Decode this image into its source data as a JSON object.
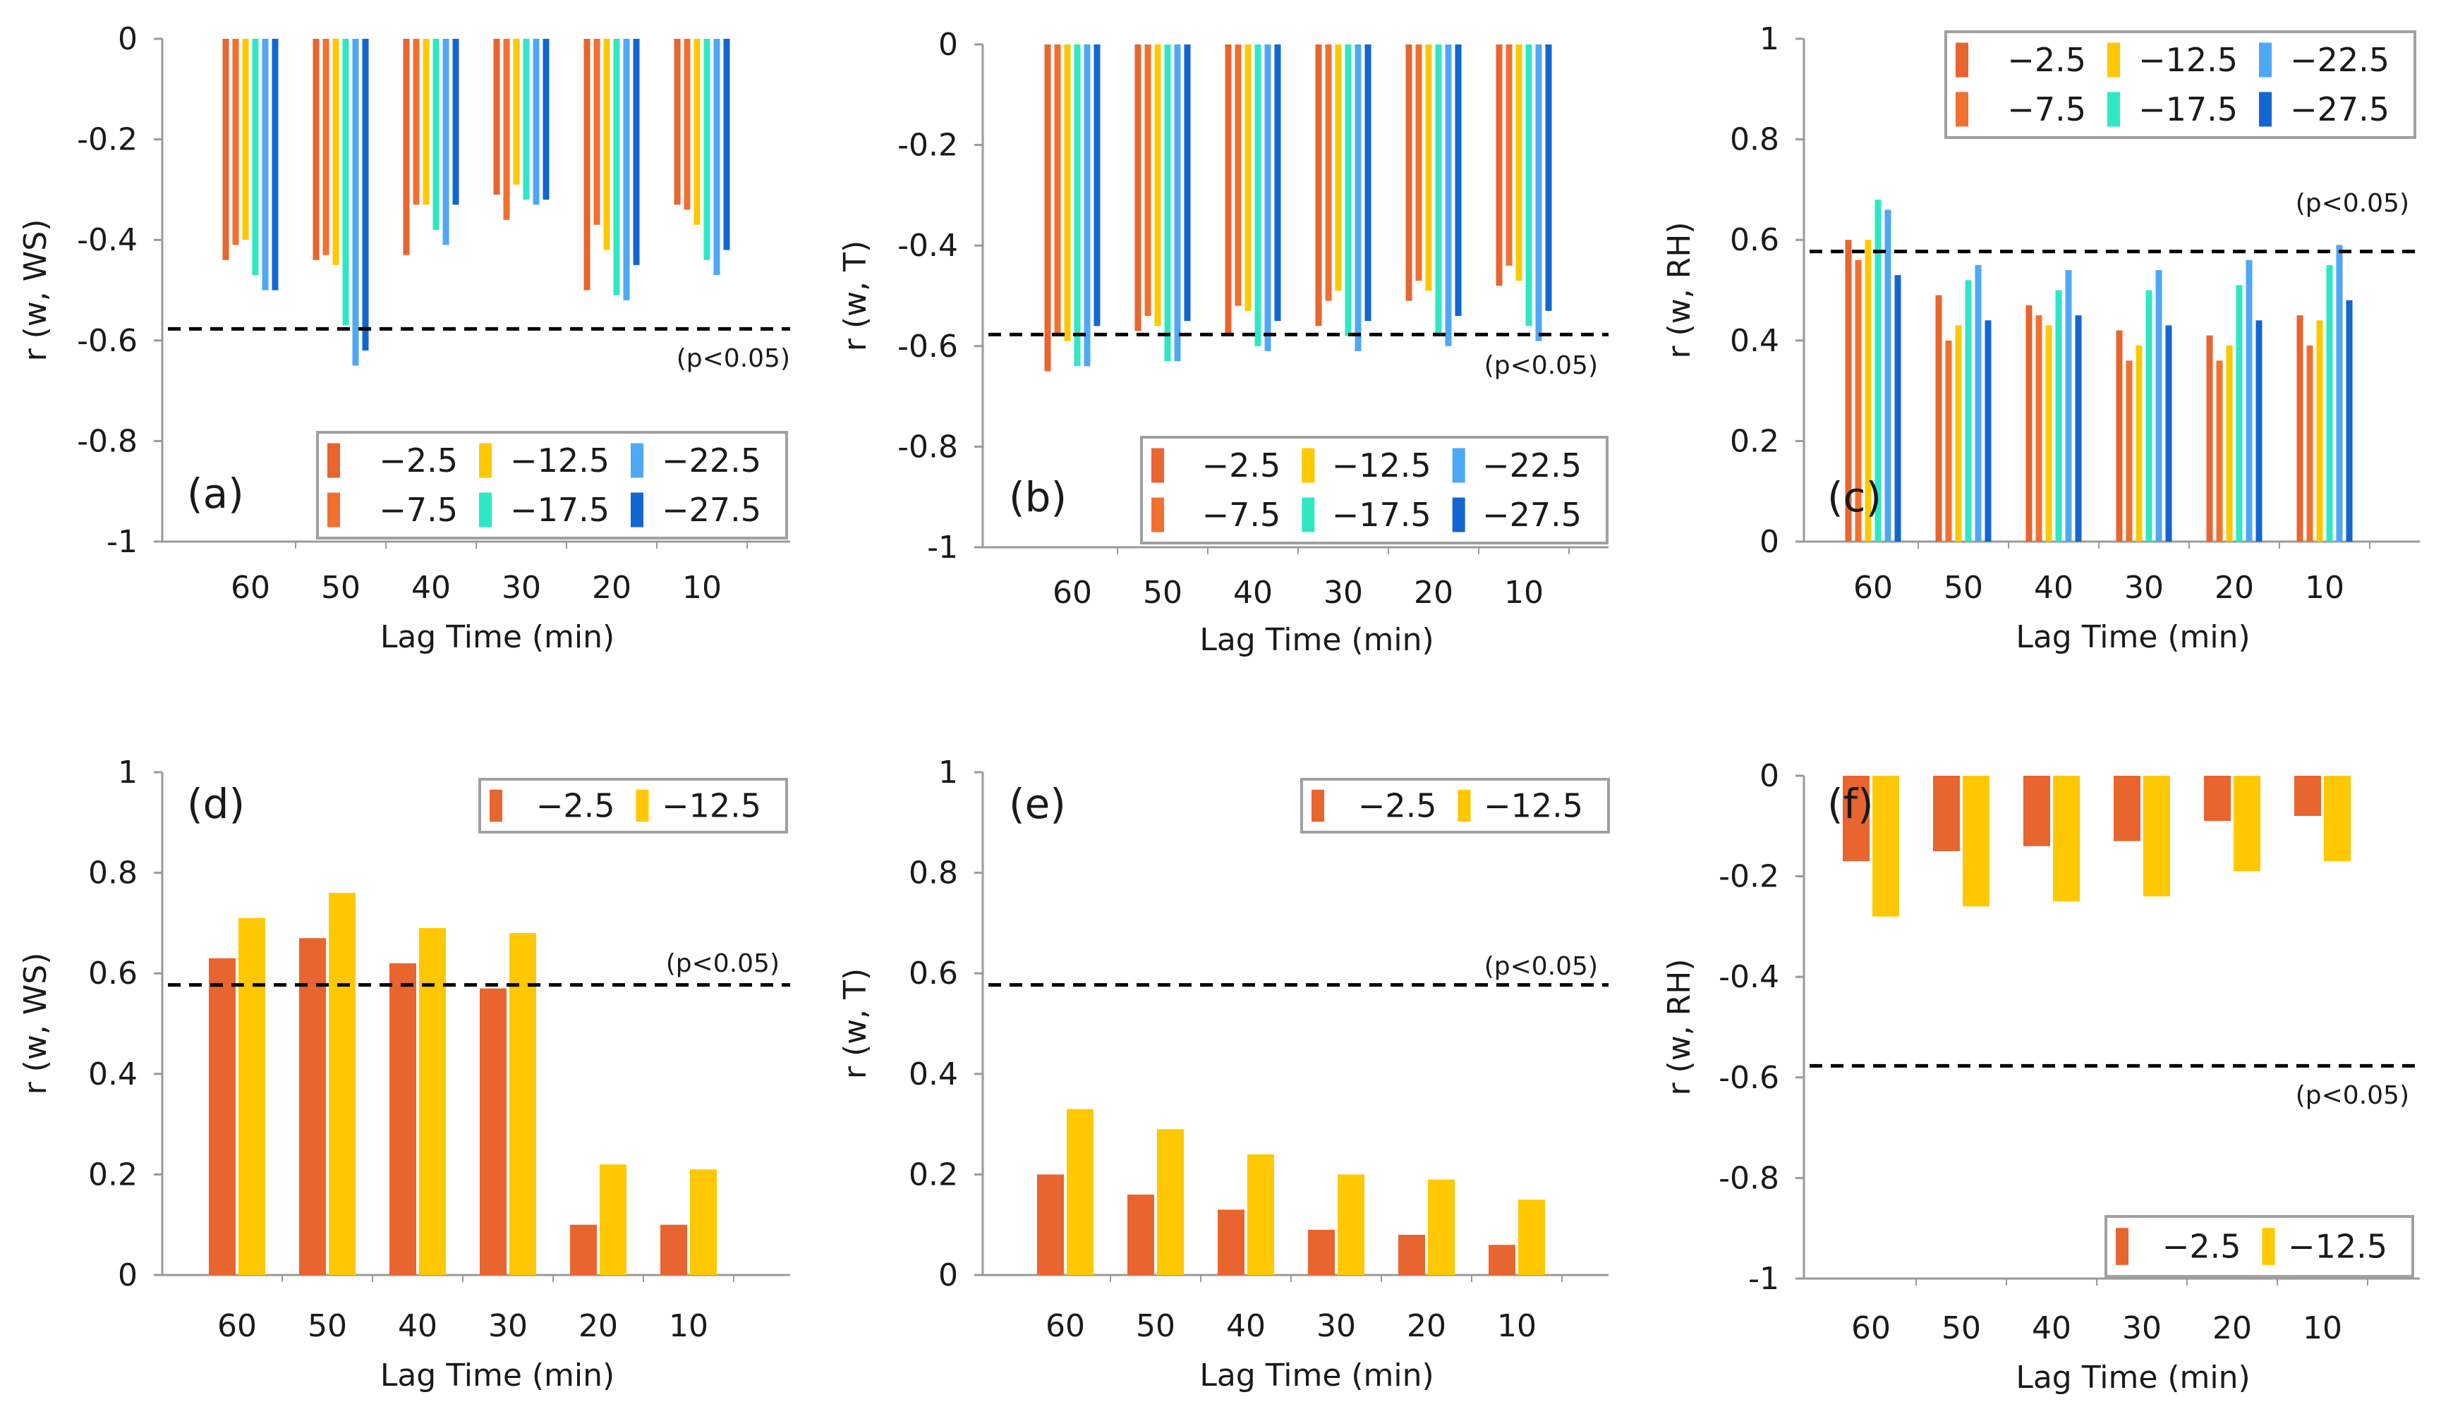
{
  "figure": {
    "xlabel_common": "Lag Time (min)",
    "sig_label": "(p<0.05)"
  },
  "colors": {
    "-2.5": "#E8652F",
    "-7.5": "#F2702F",
    "-12.5": "#FFC800",
    "-17.5": "#2EE8C4",
    "-22.5": "#4FA8F5",
    "-27.5": "#1366D1",
    "axis": "#9a9a9a",
    "legend_border": "#a0a0a0",
    "sig_line": "#000000"
  },
  "chart_data": [
    {
      "id": "a",
      "type": "bar",
      "panel_label": "(a)",
      "ylabel": "r (w, WS)",
      "xlabel": "Lag Time (min)",
      "ylim": [
        -1,
        0
      ],
      "yticks": [
        "0",
        "-0.2",
        "-0.4",
        "-0.6",
        "-0.8",
        "-1"
      ],
      "ytick_values": [
        0,
        -0.2,
        -0.4,
        -0.6,
        -0.8,
        -1
      ],
      "categories": [
        "60",
        "50",
        "40",
        "30",
        "20",
        "10"
      ],
      "sig_threshold": -0.577,
      "sig_label": "(p<0.05)",
      "series": [
        {
          "name": "−2.5",
          "key": "-2.5",
          "values": [
            -0.44,
            -0.44,
            -0.43,
            -0.31,
            -0.5,
            -0.33
          ]
        },
        {
          "name": "−7.5",
          "key": "-7.5",
          "values": [
            -0.41,
            -0.43,
            -0.33,
            -0.36,
            -0.37,
            -0.34
          ]
        },
        {
          "name": "−12.5",
          "key": "-12.5",
          "values": [
            -0.4,
            -0.45,
            -0.33,
            -0.29,
            -0.42,
            -0.37
          ]
        },
        {
          "name": "−17.5",
          "key": "-17.5",
          "values": [
            -0.47,
            -0.57,
            -0.38,
            -0.32,
            -0.51,
            -0.44
          ]
        },
        {
          "name": "−22.5",
          "key": "-22.5",
          "values": [
            -0.5,
            -0.65,
            -0.41,
            -0.33,
            -0.52,
            -0.47
          ]
        },
        {
          "name": "−27.5",
          "key": "-27.5",
          "values": [
            -0.5,
            -0.62,
            -0.33,
            -0.32,
            -0.45,
            -0.42
          ]
        }
      ],
      "legend": {
        "placement": "bottom-right",
        "entries": [
          "−2.5",
          "−7.5",
          "−12.5",
          "−17.5",
          "−22.5",
          "−27.5"
        ]
      }
    },
    {
      "id": "b",
      "type": "bar",
      "panel_label": "(b)",
      "ylabel": "r (w, T)",
      "xlabel": "Lag Time (min)",
      "ylim": [
        -1,
        0
      ],
      "yticks": [
        "0",
        "-0.2",
        "-0.4",
        "-0.6",
        "-0.8",
        "-1"
      ],
      "ytick_values": [
        0,
        -0.2,
        -0.4,
        -0.6,
        -0.8,
        -1
      ],
      "categories": [
        "60",
        "50",
        "40",
        "30",
        "20",
        "10"
      ],
      "sig_threshold": -0.577,
      "sig_label": "(p<0.05)",
      "series": [
        {
          "name": "−2.5",
          "key": "-2.5",
          "values": [
            -0.65,
            -0.57,
            -0.58,
            -0.56,
            -0.51,
            -0.48
          ]
        },
        {
          "name": "−7.5",
          "key": "-7.5",
          "values": [
            -0.58,
            -0.54,
            -0.52,
            -0.51,
            -0.47,
            -0.44
          ]
        },
        {
          "name": "−12.5",
          "key": "-12.5",
          "values": [
            -0.59,
            -0.56,
            -0.53,
            -0.49,
            -0.49,
            -0.47
          ]
        },
        {
          "name": "−17.5",
          "key": "-17.5",
          "values": [
            -0.64,
            -0.63,
            -0.6,
            -0.58,
            -0.58,
            -0.56
          ]
        },
        {
          "name": "−22.5",
          "key": "-22.5",
          "values": [
            -0.64,
            -0.63,
            -0.61,
            -0.61,
            -0.6,
            -0.59
          ]
        },
        {
          "name": "−27.5",
          "key": "-27.5",
          "values": [
            -0.56,
            -0.55,
            -0.55,
            -0.55,
            -0.54,
            -0.53
          ]
        }
      ],
      "legend": {
        "placement": "bottom-right",
        "entries": [
          "−2.5",
          "−7.5",
          "−12.5",
          "−17.5",
          "−22.5",
          "−27.5"
        ]
      }
    },
    {
      "id": "c",
      "type": "bar",
      "panel_label": "(c)",
      "ylabel": "r (w, RH)",
      "xlabel": "Lag Time (min)",
      "ylim": [
        0,
        1
      ],
      "yticks": [
        "1",
        "0.8",
        "0.6",
        "0.4",
        "0.2",
        "0"
      ],
      "ytick_values": [
        1,
        0.8,
        0.6,
        0.4,
        0.2,
        0
      ],
      "categories": [
        "60",
        "50",
        "40",
        "30",
        "20",
        "10"
      ],
      "sig_threshold": 0.577,
      "sig_label": "(p<0.05)",
      "series": [
        {
          "name": "−2.5",
          "key": "-2.5",
          "values": [
            0.6,
            0.49,
            0.47,
            0.42,
            0.41,
            0.45
          ]
        },
        {
          "name": "−7.5",
          "key": "-7.5",
          "values": [
            0.56,
            0.4,
            0.45,
            0.36,
            0.36,
            0.39
          ]
        },
        {
          "name": "−12.5",
          "key": "-12.5",
          "values": [
            0.6,
            0.43,
            0.43,
            0.39,
            0.39,
            0.44
          ]
        },
        {
          "name": "−17.5",
          "key": "-17.5",
          "values": [
            0.68,
            0.52,
            0.5,
            0.5,
            0.51,
            0.55
          ]
        },
        {
          "name": "−22.5",
          "key": "-22.5",
          "values": [
            0.66,
            0.55,
            0.54,
            0.54,
            0.56,
            0.59
          ]
        },
        {
          "name": "−27.5",
          "key": "-27.5",
          "values": [
            0.53,
            0.44,
            0.45,
            0.43,
            0.44,
            0.48
          ]
        }
      ],
      "legend": {
        "placement": "top-right",
        "entries": [
          "−2.5",
          "−7.5",
          "−12.5",
          "−17.5",
          "−22.5",
          "−27.5"
        ]
      }
    },
    {
      "id": "d",
      "type": "bar",
      "panel_label": "(d)",
      "ylabel": "r (w, WS)",
      "xlabel": "Lag Time (min)",
      "ylim": [
        0,
        1
      ],
      "yticks": [
        "1",
        "0.8",
        "0.6",
        "0.4",
        "0.2",
        "0"
      ],
      "ytick_values": [
        1,
        0.8,
        0.6,
        0.4,
        0.2,
        0
      ],
      "categories": [
        "60",
        "50",
        "40",
        "30",
        "20",
        "10"
      ],
      "sig_threshold": 0.577,
      "sig_label": "(p<0.05)",
      "series": [
        {
          "name": "−2.5",
          "key": "-2.5",
          "values": [
            0.63,
            0.67,
            0.62,
            0.57,
            0.1,
            0.1
          ]
        },
        {
          "name": "−12.5",
          "key": "-12.5",
          "values": [
            0.71,
            0.76,
            0.69,
            0.68,
            0.22,
            0.21
          ]
        }
      ],
      "legend": {
        "placement": "top-right",
        "entries": [
          "−2.5",
          "−12.5"
        ]
      }
    },
    {
      "id": "e",
      "type": "bar",
      "panel_label": "(e)",
      "ylabel": "r (w, T)",
      "xlabel": "Lag Time (min)",
      "ylim": [
        0,
        1
      ],
      "yticks": [
        "1",
        "0.8",
        "0.6",
        "0.4",
        "0.2",
        "0"
      ],
      "ytick_values": [
        1,
        0.8,
        0.6,
        0.4,
        0.2,
        0
      ],
      "categories": [
        "60",
        "50",
        "40",
        "30",
        "20",
        "10"
      ],
      "sig_threshold": 0.577,
      "sig_label": "(p<0.05)",
      "series": [
        {
          "name": "−2.5",
          "key": "-2.5",
          "values": [
            0.2,
            0.16,
            0.13,
            0.09,
            0.08,
            0.06
          ]
        },
        {
          "name": "−12.5",
          "key": "-12.5",
          "values": [
            0.33,
            0.29,
            0.24,
            0.2,
            0.19,
            0.15
          ]
        }
      ],
      "legend": {
        "placement": "top-right",
        "entries": [
          "−2.5",
          "−12.5"
        ]
      }
    },
    {
      "id": "f",
      "type": "bar",
      "panel_label": "(f)",
      "ylabel": "r (w, RH)",
      "xlabel": "Lag Time (min)",
      "ylim": [
        -1,
        0
      ],
      "yticks": [
        "0",
        "-0.2",
        "-0.4",
        "-0.6",
        "-0.8",
        "-1"
      ],
      "ytick_values": [
        0,
        -0.2,
        -0.4,
        -0.6,
        -0.8,
        -1
      ],
      "categories": [
        "60",
        "50",
        "40",
        "30",
        "20",
        "10"
      ],
      "sig_threshold": -0.577,
      "sig_label": "(p<0.05)",
      "series": [
        {
          "name": "−2.5",
          "key": "-2.5",
          "values": [
            -0.17,
            -0.15,
            -0.14,
            -0.13,
            -0.09,
            -0.08
          ]
        },
        {
          "name": "−12.5",
          "key": "-12.5",
          "values": [
            -0.28,
            -0.26,
            -0.25,
            -0.24,
            -0.19,
            -0.17
          ]
        }
      ],
      "legend": {
        "placement": "bottom-right",
        "entries": [
          "−2.5",
          "−12.5"
        ]
      }
    }
  ]
}
